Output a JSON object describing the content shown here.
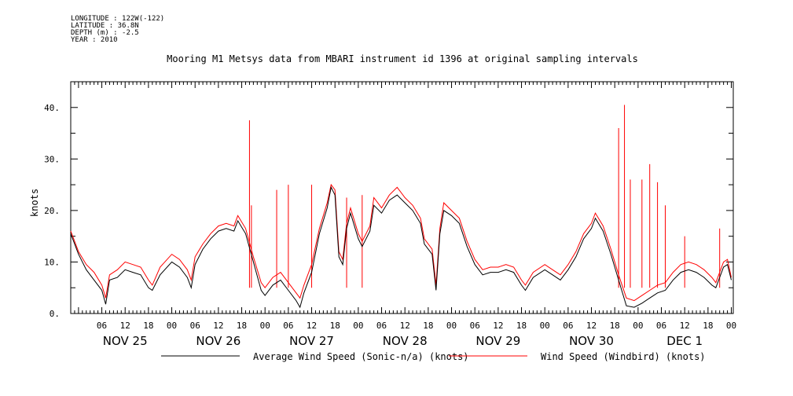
{
  "metadata": {
    "longitude": "LONGITUDE : 122W(-122)",
    "latitude": "LATITUDE : 36.8N",
    "depth": "DEPTH (m) : -2.5",
    "year": "YEAR : 2010"
  },
  "colors": {
    "series_black": "#000000",
    "series_red": "#ff0000"
  },
  "chart_data": {
    "type": "line",
    "title": "Mooring M1 Metsys data from MBARI instrument id 1396 at original sampling intervals",
    "ylabel": "knots",
    "xlabel": "",
    "x_range": [
      "2010-11-24T22:00",
      "2010-12-02T00:30"
    ],
    "ylim": [
      0,
      45
    ],
    "y_ticks": [
      0,
      10,
      20,
      30,
      40
    ],
    "y_tick_labels": [
      "0.",
      "10.",
      "20.",
      "30.",
      "40."
    ],
    "hour_ticks": [
      {
        "t": "2010-11-25T06:00",
        "label": "06"
      },
      {
        "t": "2010-11-25T12:00",
        "label": "12"
      },
      {
        "t": "2010-11-25T18:00",
        "label": "18"
      },
      {
        "t": "2010-11-26T00:00",
        "label": "00"
      },
      {
        "t": "2010-11-26T06:00",
        "label": "06"
      },
      {
        "t": "2010-11-26T12:00",
        "label": "12"
      },
      {
        "t": "2010-11-26T18:00",
        "label": "18"
      },
      {
        "t": "2010-11-27T00:00",
        "label": "00"
      },
      {
        "t": "2010-11-27T06:00",
        "label": "06"
      },
      {
        "t": "2010-11-27T12:00",
        "label": "12"
      },
      {
        "t": "2010-11-27T18:00",
        "label": "18"
      },
      {
        "t": "2010-11-28T00:00",
        "label": "00"
      },
      {
        "t": "2010-11-28T06:00",
        "label": "06"
      },
      {
        "t": "2010-11-28T12:00",
        "label": "12"
      },
      {
        "t": "2010-11-28T18:00",
        "label": "18"
      },
      {
        "t": "2010-11-29T00:00",
        "label": "00"
      },
      {
        "t": "2010-11-29T06:00",
        "label": "06"
      },
      {
        "t": "2010-11-29T12:00",
        "label": "12"
      },
      {
        "t": "2010-11-29T18:00",
        "label": "18"
      },
      {
        "t": "2010-11-30T00:00",
        "label": "00"
      },
      {
        "t": "2010-11-30T06:00",
        "label": "06"
      },
      {
        "t": "2010-11-30T12:00",
        "label": "12"
      },
      {
        "t": "2010-11-30T18:00",
        "label": "18"
      },
      {
        "t": "2010-12-01T00:00",
        "label": "00"
      },
      {
        "t": "2010-12-01T06:00",
        "label": "06"
      },
      {
        "t": "2010-12-01T12:00",
        "label": "12"
      },
      {
        "t": "2010-12-01T18:00",
        "label": "18"
      },
      {
        "t": "2010-12-02T00:00",
        "label": "00"
      }
    ],
    "day_labels": [
      {
        "t": "2010-11-25T12:00",
        "label": "NOV 25"
      },
      {
        "t": "2010-11-26T12:00",
        "label": "NOV 26"
      },
      {
        "t": "2010-11-27T12:00",
        "label": "NOV 27"
      },
      {
        "t": "2010-11-28T12:00",
        "label": "NOV 28"
      },
      {
        "t": "2010-11-29T12:00",
        "label": "NOV 29"
      },
      {
        "t": "2010-11-30T12:00",
        "label": "NOV 30"
      },
      {
        "t": "2010-12-01T12:00",
        "label": "DEC  1"
      }
    ],
    "legend_placement": "bottom",
    "grid": false,
    "series": [
      {
        "name": "Average Wind Speed (Sonic-n/a) (knots)",
        "color": "#000000",
        "points": [
          [
            "2010-11-24T22:00",
            15.5
          ],
          [
            "2010-11-25T00:00",
            11.5
          ],
          [
            "2010-11-25T02:00",
            8.5
          ],
          [
            "2010-11-25T04:00",
            6.5
          ],
          [
            "2010-11-25T06:00",
            4.5
          ],
          [
            "2010-11-25T07:00",
            1.8
          ],
          [
            "2010-11-25T08:00",
            6.5
          ],
          [
            "2010-11-25T10:00",
            7.0
          ],
          [
            "2010-11-25T12:00",
            8.5
          ],
          [
            "2010-11-25T14:00",
            8.0
          ],
          [
            "2010-11-25T16:00",
            7.5
          ],
          [
            "2010-11-25T18:00",
            5.0
          ],
          [
            "2010-11-25T19:00",
            4.5
          ],
          [
            "2010-11-25T21:00",
            7.5
          ],
          [
            "2010-11-26T00:00",
            10.0
          ],
          [
            "2010-11-26T02:00",
            9.0
          ],
          [
            "2010-11-26T04:00",
            7.0
          ],
          [
            "2010-11-26T05:00",
            5.0
          ],
          [
            "2010-11-26T06:00",
            9.5
          ],
          [
            "2010-11-26T08:00",
            12.5
          ],
          [
            "2010-11-26T10:00",
            14.5
          ],
          [
            "2010-11-26T12:00",
            16.0
          ],
          [
            "2010-11-26T14:00",
            16.5
          ],
          [
            "2010-11-26T16:00",
            16.0
          ],
          [
            "2010-11-26T17:00",
            18.0
          ],
          [
            "2010-11-26T19:00",
            15.5
          ],
          [
            "2010-11-26T21:00",
            10.0
          ],
          [
            "2010-11-26T23:00",
            4.5
          ],
          [
            "2010-11-27T00:00",
            3.5
          ],
          [
            "2010-11-27T02:00",
            5.5
          ],
          [
            "2010-11-27T04:00",
            6.5
          ],
          [
            "2010-11-27T06:00",
            4.5
          ],
          [
            "2010-11-27T08:00",
            2.5
          ],
          [
            "2010-11-27T09:00",
            1.2
          ],
          [
            "2010-11-27T10:00",
            4.0
          ],
          [
            "2010-11-27T12:00",
            8.0
          ],
          [
            "2010-11-27T14:00",
            15.5
          ],
          [
            "2010-11-27T16:00",
            20.5
          ],
          [
            "2010-11-27T17:00",
            24.5
          ],
          [
            "2010-11-27T18:00",
            23.0
          ],
          [
            "2010-11-27T19:00",
            11.0
          ],
          [
            "2010-11-27T20:00",
            9.5
          ],
          [
            "2010-11-27T21:00",
            16.5
          ],
          [
            "2010-11-27T22:00",
            19.5
          ],
          [
            "2010-11-28T00:00",
            14.5
          ],
          [
            "2010-11-28T01:00",
            13.0
          ],
          [
            "2010-11-28T03:00",
            16.0
          ],
          [
            "2010-11-28T04:00",
            21.0
          ],
          [
            "2010-11-28T06:00",
            19.5
          ],
          [
            "2010-11-28T08:00",
            22.0
          ],
          [
            "2010-11-28T10:00",
            23.0
          ],
          [
            "2010-11-28T12:00",
            21.5
          ],
          [
            "2010-11-28T14:00",
            20.0
          ],
          [
            "2010-11-28T16:00",
            17.5
          ],
          [
            "2010-11-28T17:00",
            13.5
          ],
          [
            "2010-11-28T19:00",
            11.5
          ],
          [
            "2010-11-28T20:00",
            4.5
          ],
          [
            "2010-11-28T21:00",
            15.5
          ],
          [
            "2010-11-28T22:00",
            20.0
          ],
          [
            "2010-11-29T00:00",
            19.0
          ],
          [
            "2010-11-29T02:00",
            17.5
          ],
          [
            "2010-11-29T04:00",
            13.0
          ],
          [
            "2010-11-29T06:00",
            9.5
          ],
          [
            "2010-11-29T08:00",
            7.5
          ],
          [
            "2010-11-29T10:00",
            8.0
          ],
          [
            "2010-11-29T12:00",
            8.0
          ],
          [
            "2010-11-29T14:00",
            8.5
          ],
          [
            "2010-11-29T16:00",
            8.0
          ],
          [
            "2010-11-29T18:00",
            5.5
          ],
          [
            "2010-11-29T19:00",
            4.5
          ],
          [
            "2010-11-29T21:00",
            7.0
          ],
          [
            "2010-11-30T00:00",
            8.5
          ],
          [
            "2010-11-30T02:00",
            7.5
          ],
          [
            "2010-11-30T04:00",
            6.5
          ],
          [
            "2010-11-30T06:00",
            8.5
          ],
          [
            "2010-11-30T08:00",
            11.0
          ],
          [
            "2010-11-30T10:00",
            14.5
          ],
          [
            "2010-11-30T12:00",
            16.5
          ],
          [
            "2010-11-30T13:00",
            18.5
          ],
          [
            "2010-11-30T15:00",
            16.0
          ],
          [
            "2010-11-30T17:00",
            11.5
          ],
          [
            "2010-11-30T19:00",
            6.5
          ],
          [
            "2010-11-30T21:00",
            1.5
          ],
          [
            "2010-11-30T23:00",
            1.2
          ],
          [
            "2010-12-01T01:00",
            2.0
          ],
          [
            "2010-12-01T03:00",
            3.0
          ],
          [
            "2010-12-01T05:00",
            4.0
          ],
          [
            "2010-12-01T07:00",
            4.5
          ],
          [
            "2010-12-01T09:00",
            6.5
          ],
          [
            "2010-12-01T11:00",
            8.0
          ],
          [
            "2010-12-01T13:00",
            8.5
          ],
          [
            "2010-12-01T15:00",
            8.0
          ],
          [
            "2010-12-01T17:00",
            7.0
          ],
          [
            "2010-12-01T19:00",
            5.5
          ],
          [
            "2010-12-01T20:00",
            5.0
          ],
          [
            "2010-12-01T22:00",
            9.0
          ],
          [
            "2010-12-01T23:00",
            9.5
          ],
          [
            "2010-12-02T00:00",
            6.5
          ]
        ]
      },
      {
        "name": "Wind Speed (Windbird) (knots)",
        "color": "#ff0000",
        "points": [
          [
            "2010-11-24T22:00",
            16.0
          ],
          [
            "2010-11-25T00:00",
            12.0
          ],
          [
            "2010-11-25T02:00",
            9.5
          ],
          [
            "2010-11-25T04:00",
            8.0
          ],
          [
            "2010-11-25T06:00",
            5.5
          ],
          [
            "2010-11-25T07:00",
            3.0
          ],
          [
            "2010-11-25T08:00",
            7.5
          ],
          [
            "2010-11-25T10:00",
            8.5
          ],
          [
            "2010-11-25T12:00",
            10.0
          ],
          [
            "2010-11-25T14:00",
            9.5
          ],
          [
            "2010-11-25T16:00",
            9.0
          ],
          [
            "2010-11-25T18:00",
            6.5
          ],
          [
            "2010-11-25T19:00",
            5.5
          ],
          [
            "2010-11-25T21:00",
            9.0
          ],
          [
            "2010-11-26T00:00",
            11.5
          ],
          [
            "2010-11-26T02:00",
            10.5
          ],
          [
            "2010-11-26T04:00",
            8.5
          ],
          [
            "2010-11-26T05:00",
            6.5
          ],
          [
            "2010-11-26T06:00",
            11.0
          ],
          [
            "2010-11-26T08:00",
            13.5
          ],
          [
            "2010-11-26T10:00",
            15.5
          ],
          [
            "2010-11-26T12:00",
            17.0
          ],
          [
            "2010-11-26T14:00",
            17.5
          ],
          [
            "2010-11-26T16:00",
            17.0
          ],
          [
            "2010-11-26T17:00",
            19.0
          ],
          [
            "2010-11-26T19:00",
            16.5
          ],
          [
            "2010-11-26T21:00",
            11.0
          ],
          [
            "2010-11-26T23:00",
            6.0
          ],
          [
            "2010-11-27T00:00",
            5.0
          ],
          [
            "2010-11-27T02:00",
            7.0
          ],
          [
            "2010-11-27T04:00",
            8.0
          ],
          [
            "2010-11-27T06:00",
            6.0
          ],
          [
            "2010-11-27T08:00",
            4.0
          ],
          [
            "2010-11-27T09:00",
            3.0
          ],
          [
            "2010-11-27T10:00",
            5.5
          ],
          [
            "2010-11-27T12:00",
            9.5
          ],
          [
            "2010-11-27T14:00",
            16.5
          ],
          [
            "2010-11-27T16:00",
            21.5
          ],
          [
            "2010-11-27T17:00",
            25.0
          ],
          [
            "2010-11-27T18:00",
            24.0
          ],
          [
            "2010-11-27T19:00",
            12.0
          ],
          [
            "2010-11-27T20:00",
            10.5
          ],
          [
            "2010-11-27T21:00",
            17.5
          ],
          [
            "2010-11-27T22:00",
            20.5
          ],
          [
            "2010-11-28T00:00",
            15.5
          ],
          [
            "2010-11-28T01:00",
            14.0
          ],
          [
            "2010-11-28T03:00",
            17.0
          ],
          [
            "2010-11-28T04:00",
            22.5
          ],
          [
            "2010-11-28T06:00",
            20.5
          ],
          [
            "2010-11-28T08:00",
            23.0
          ],
          [
            "2010-11-28T10:00",
            24.5
          ],
          [
            "2010-11-28T12:00",
            22.5
          ],
          [
            "2010-11-28T14:00",
            21.0
          ],
          [
            "2010-11-28T16:00",
            18.5
          ],
          [
            "2010-11-28T17:00",
            14.5
          ],
          [
            "2010-11-28T19:00",
            12.5
          ],
          [
            "2010-11-28T20:00",
            5.5
          ],
          [
            "2010-11-28T21:00",
            16.5
          ],
          [
            "2010-11-28T22:00",
            21.5
          ],
          [
            "2010-11-29T00:00",
            20.0
          ],
          [
            "2010-11-29T02:00",
            18.5
          ],
          [
            "2010-11-29T04:00",
            14.0
          ],
          [
            "2010-11-29T06:00",
            10.5
          ],
          [
            "2010-11-29T08:00",
            8.5
          ],
          [
            "2010-11-29T10:00",
            9.0
          ],
          [
            "2010-11-29T12:00",
            9.0
          ],
          [
            "2010-11-29T14:00",
            9.5
          ],
          [
            "2010-11-29T16:00",
            9.0
          ],
          [
            "2010-11-29T18:00",
            6.5
          ],
          [
            "2010-11-29T19:00",
            5.5
          ],
          [
            "2010-11-29T21:00",
            8.0
          ],
          [
            "2010-11-30T00:00",
            9.5
          ],
          [
            "2010-11-30T02:00",
            8.5
          ],
          [
            "2010-11-30T04:00",
            7.5
          ],
          [
            "2010-11-30T06:00",
            9.5
          ],
          [
            "2010-11-30T08:00",
            12.0
          ],
          [
            "2010-11-30T10:00",
            15.5
          ],
          [
            "2010-11-30T12:00",
            17.5
          ],
          [
            "2010-11-30T13:00",
            19.5
          ],
          [
            "2010-11-30T15:00",
            17.0
          ],
          [
            "2010-11-30T17:00",
            12.5
          ],
          [
            "2010-11-30T19:00",
            7.5
          ],
          [
            "2010-11-30T21:00",
            3.0
          ],
          [
            "2010-11-30T23:00",
            2.5
          ],
          [
            "2010-12-01T01:00",
            3.5
          ],
          [
            "2010-12-01T03:00",
            4.5
          ],
          [
            "2010-12-01T05:00",
            5.5
          ],
          [
            "2010-12-01T07:00",
            6.0
          ],
          [
            "2010-12-01T09:00",
            8.0
          ],
          [
            "2010-12-01T11:00",
            9.5
          ],
          [
            "2010-12-01T13:00",
            10.0
          ],
          [
            "2010-12-01T15:00",
            9.5
          ],
          [
            "2010-12-01T17:00",
            8.5
          ],
          [
            "2010-12-01T19:00",
            7.0
          ],
          [
            "2010-12-01T20:00",
            6.0
          ],
          [
            "2010-12-01T22:00",
            10.0
          ],
          [
            "2010-12-01T23:00",
            10.5
          ],
          [
            "2010-12-02T00:00",
            7.0
          ]
        ],
        "spikes": [
          [
            "2010-11-26T20:00",
            37.5
          ],
          [
            "2010-11-26T20:30",
            21.0
          ],
          [
            "2010-11-27T03:00",
            24.0
          ],
          [
            "2010-11-27T06:00",
            25.0
          ],
          [
            "2010-11-27T12:00",
            25.0
          ],
          [
            "2010-11-27T21:00",
            22.5
          ],
          [
            "2010-11-28T01:00",
            23.0
          ],
          [
            "2010-11-30T19:00",
            36.0
          ],
          [
            "2010-11-30T20:30",
            40.5
          ],
          [
            "2010-11-30T22:00",
            26.0
          ],
          [
            "2010-12-01T01:00",
            26.0
          ],
          [
            "2010-12-01T03:00",
            29.0
          ],
          [
            "2010-12-01T05:00",
            25.5
          ],
          [
            "2010-12-01T07:00",
            21.0
          ],
          [
            "2010-12-01T12:00",
            15.0
          ],
          [
            "2010-12-01T21:00",
            16.5
          ]
        ]
      }
    ]
  }
}
